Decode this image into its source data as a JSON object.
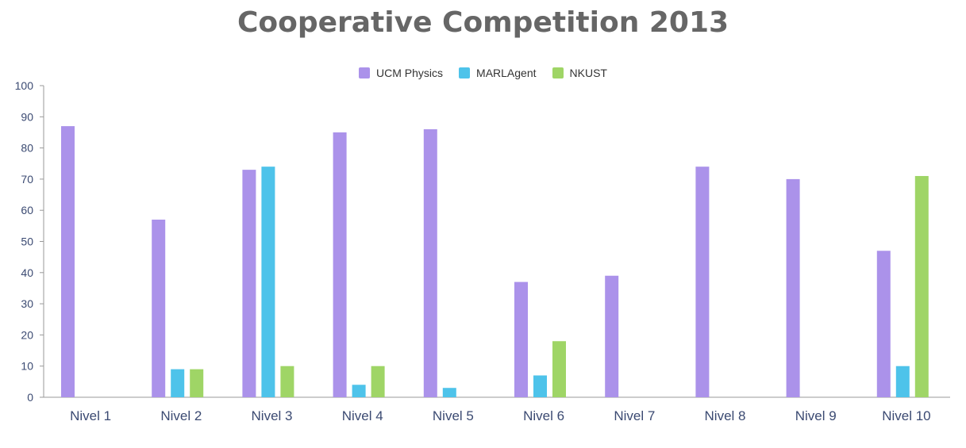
{
  "chart_data": {
    "type": "bar",
    "title": "Cooperative Competition 2013",
    "categories": [
      "Nivel 1",
      "Nivel 2",
      "Nivel 3",
      "Nivel 4",
      "Nivel 5",
      "Nivel 6",
      "Nivel 7",
      "Nivel 8",
      "Nivel 9",
      "Nivel 10"
    ],
    "series": [
      {
        "name": "UCM Physics",
        "color": "#ab92ea",
        "values": [
          87,
          57,
          73,
          85,
          86,
          37,
          39,
          74,
          70,
          47
        ]
      },
      {
        "name": "MARLAgent",
        "color": "#4ec3ea",
        "values": [
          0,
          9,
          74,
          4,
          3,
          7,
          0,
          0,
          0,
          10
        ]
      },
      {
        "name": "NKUST",
        "color": "#9fd566",
        "values": [
          0,
          9,
          10,
          10,
          0,
          18,
          0,
          0,
          0,
          71
        ]
      }
    ],
    "ylim": [
      0,
      100
    ],
    "yticks": [
      0,
      10,
      20,
      30,
      40,
      50,
      60,
      70,
      80,
      90,
      100
    ],
    "xlabel": "",
    "ylabel": "",
    "grid": false,
    "legend_position": "top-center"
  }
}
